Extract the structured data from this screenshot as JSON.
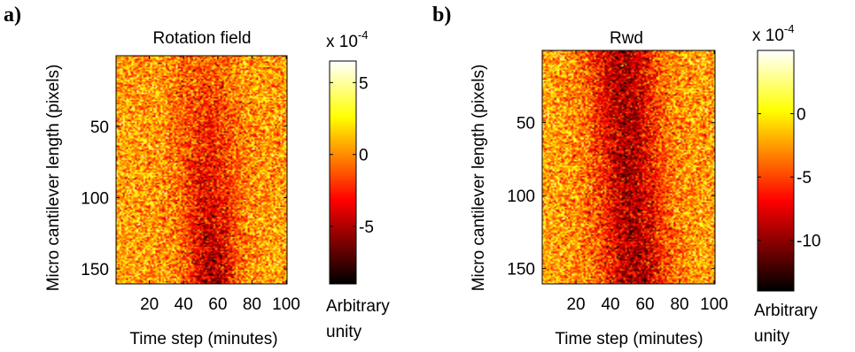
{
  "chart_data": [
    {
      "panel_label": "a)",
      "type": "heatmap",
      "title": "Rotation field",
      "xlabel": "Time step (minutes)",
      "ylabel": "Micro cantilever length (pixels)",
      "xlim": [
        1,
        100
      ],
      "ylim": [
        1,
        160
      ],
      "y_reversed": true,
      "xticks": [
        20,
        40,
        60,
        80,
        100
      ],
      "yticks": [
        50,
        100,
        150
      ],
      "colormap": "hot",
      "colorbar": {
        "multiplier": "x 10",
        "exponent": "-4",
        "range": [
          -9,
          6.5
        ],
        "ticks": [
          5,
          0,
          -5
        ],
        "tick_labels": [
          "5",
          "0",
          "-5"
        ],
        "label_line1": "Arbitrary",
        "label_line2": "unity"
      },
      "pattern": {
        "dark_band_center_x_start": 52,
        "dark_band_center_x_end": 57,
        "band_darkens_with_y": true
      }
    },
    {
      "panel_label": "b)",
      "type": "heatmap",
      "title": "Rwd",
      "xlabel": "Time step (minutes)",
      "ylabel": "Micro cantilever length (pixels)",
      "xlim": [
        1,
        100
      ],
      "ylim": [
        1,
        160
      ],
      "y_reversed": true,
      "xticks": [
        20,
        40,
        60,
        80,
        100
      ],
      "yticks": [
        50,
        100,
        150
      ],
      "colormap": "hot",
      "colorbar": {
        "multiplier": "x 10",
        "exponent": "-4",
        "range": [
          -14,
          5
        ],
        "ticks": [
          0,
          -5,
          -10
        ],
        "tick_labels": [
          "0",
          "-5",
          "-10"
        ],
        "label_line1": "Arbitrary",
        "label_line2": "unity"
      },
      "pattern": {
        "dark_band_center_x_start": 46,
        "dark_band_center_x_end": 55,
        "band_darkens_with_y": false
      }
    }
  ]
}
